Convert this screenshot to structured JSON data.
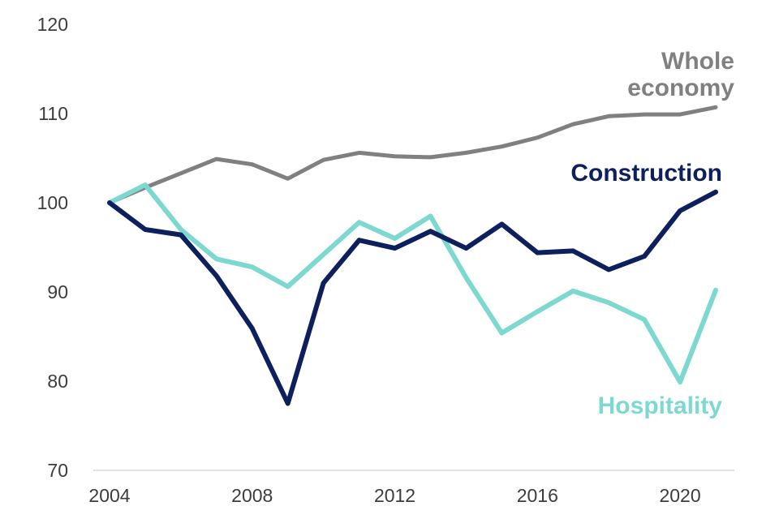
{
  "chart_data": {
    "type": "line",
    "title": "",
    "xlabel": "",
    "ylabel": "",
    "ylim": [
      70,
      120
    ],
    "xlim": [
      2004,
      2021
    ],
    "grid": false,
    "y_ticks": [
      70,
      80,
      90,
      100,
      110,
      120
    ],
    "y_tick_labels": [
      "70",
      "80",
      "90",
      "100",
      "110",
      "120"
    ],
    "x_ticks": [
      2004,
      2008,
      2012,
      2016,
      2020
    ],
    "x_tick_labels": [
      "2004",
      "2008",
      "2012",
      "2016",
      "2020"
    ],
    "x": [
      2004,
      2005,
      2006,
      2007,
      2008,
      2009,
      2010,
      2011,
      2012,
      2013,
      2014,
      2015,
      2016,
      2017,
      2018,
      2019,
      2020,
      2021
    ],
    "series": [
      {
        "key": "whole",
        "name": "Whole economy",
        "label_lines": [
          "Whole",
          "economy"
        ],
        "color": "#808080",
        "values": [
          100,
          101.7,
          103.3,
          104.9,
          104.3,
          102.7,
          104.8,
          105.6,
          105.2,
          105.1,
          105.6,
          106.3,
          107.3,
          108.8,
          109.7,
          109.9,
          109.9,
          110.7
        ]
      },
      {
        "key": "construction",
        "name": "Construction",
        "label_lines": [
          "Construction"
        ],
        "color": "#0d1f5c",
        "values": [
          100,
          97,
          96.4,
          91.8,
          85.9,
          77.5,
          91,
          95.8,
          94.9,
          96.8,
          94.9,
          97.6,
          94.4,
          94.6,
          92.5,
          94,
          99.1,
          101.2
        ]
      },
      {
        "key": "hospitality",
        "name": "Hospitality",
        "label_lines": [
          "Hospitality"
        ],
        "color": "#7dd8cf",
        "values": [
          100,
          102,
          97,
          93.7,
          92.8,
          90.6,
          94.2,
          97.8,
          96,
          98.5,
          91.6,
          85.4,
          87.8,
          90.1,
          88.8,
          86.9,
          79.9,
          90.2
        ]
      }
    ]
  }
}
